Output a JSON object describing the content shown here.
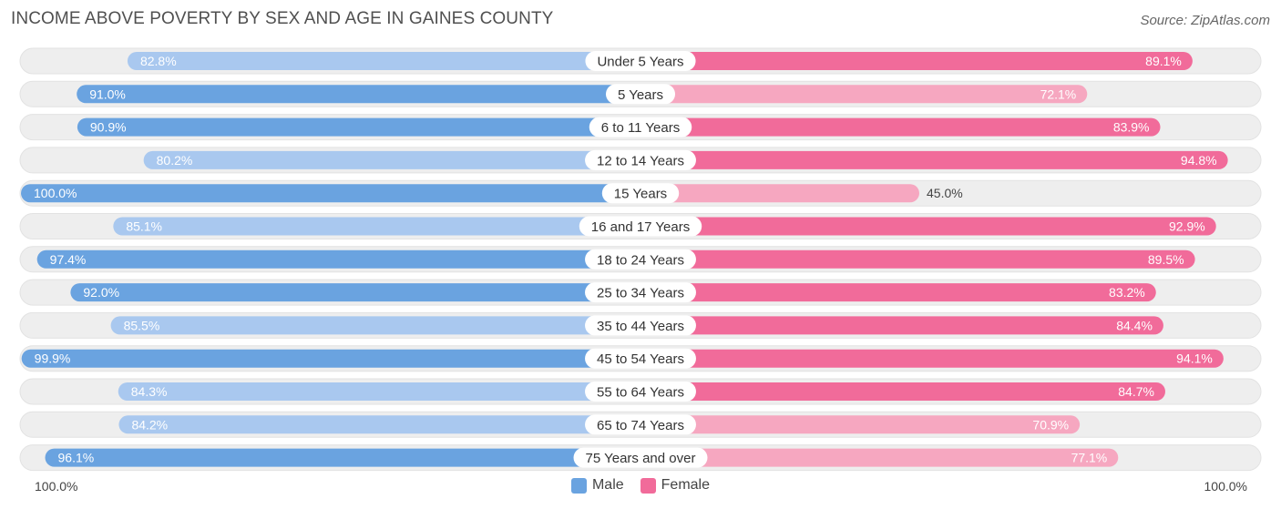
{
  "title": "INCOME ABOVE POVERTY BY SEX AND AGE IN GAINES COUNTY",
  "source": "Source: ZipAtlas.com",
  "colors": {
    "male_light": "#a9c8ef",
    "male_dark": "#6aa3e0",
    "female_light": "#f6a7c0",
    "female_dark": "#f16b9a",
    "track": "#eeeeee"
  },
  "legend": {
    "male": "Male",
    "female": "Female"
  },
  "axis": {
    "left_label": "100.0%",
    "right_label": "100.0%"
  },
  "chart_data": {
    "type": "bar",
    "title": "INCOME ABOVE POVERTY BY SEX AND AGE IN GAINES COUNTY",
    "orientation": "horizontal-diverging",
    "xlim": [
      0,
      100
    ],
    "categories": [
      "Under 5 Years",
      "5 Years",
      "6 to 11 Years",
      "12 to 14 Years",
      "15 Years",
      "16 and 17 Years",
      "18 to 24 Years",
      "25 to 34 Years",
      "35 to 44 Years",
      "45 to 54 Years",
      "55 to 64 Years",
      "65 to 74 Years",
      "75 Years and over"
    ],
    "series": [
      {
        "name": "Male",
        "values": [
          82.8,
          91.0,
          90.9,
          80.2,
          100.0,
          85.1,
          97.4,
          92.0,
          85.5,
          99.9,
          84.3,
          84.2,
          96.1
        ],
        "labels": [
          "82.8%",
          "91.0%",
          "90.9%",
          "80.2%",
          "100.0%",
          "85.1%",
          "97.4%",
          "92.0%",
          "85.5%",
          "99.9%",
          "84.3%",
          "84.2%",
          "96.1%"
        ]
      },
      {
        "name": "Female",
        "values": [
          89.1,
          72.1,
          83.9,
          94.8,
          45.0,
          92.9,
          89.5,
          83.2,
          84.4,
          94.1,
          84.7,
          70.9,
          77.1
        ],
        "labels": [
          "89.1%",
          "72.1%",
          "83.9%",
          "94.8%",
          "45.0%",
          "92.9%",
          "89.5%",
          "83.2%",
          "84.4%",
          "94.1%",
          "84.7%",
          "70.9%",
          "77.1%"
        ]
      }
    ],
    "legend_position": "bottom-center"
  }
}
